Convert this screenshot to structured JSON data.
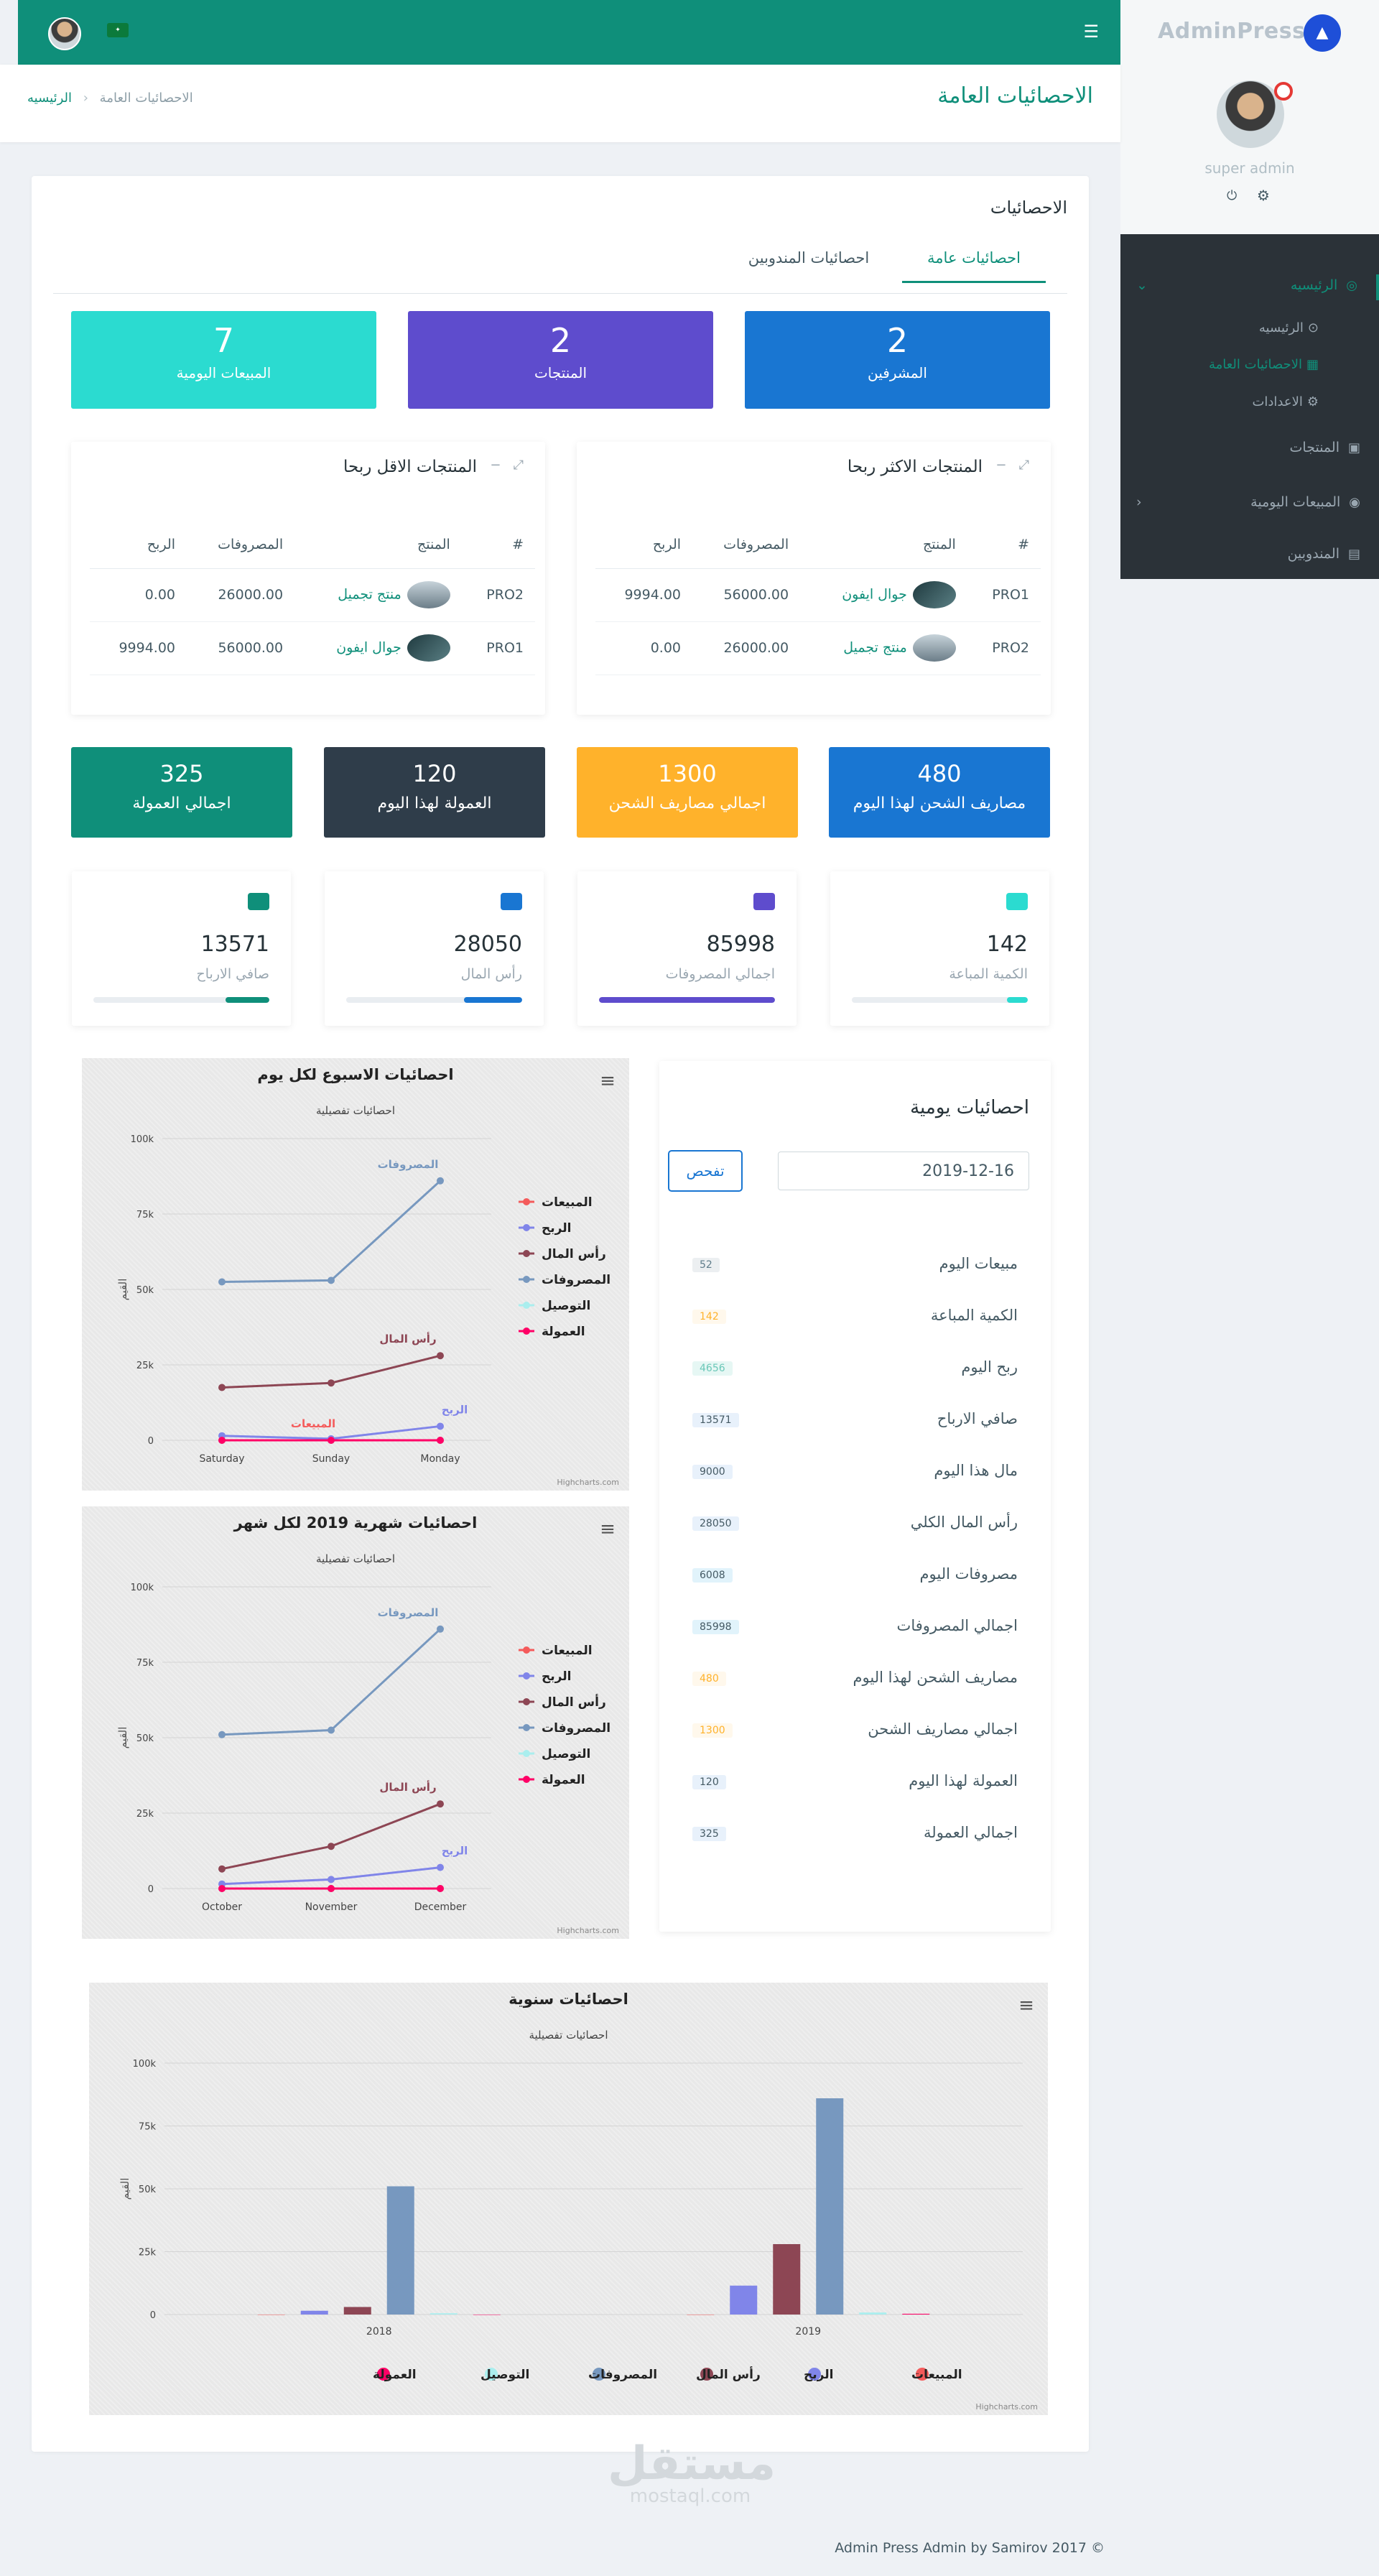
{
  "app": {
    "logo": "AdminPress",
    "profile_name": "super admin"
  },
  "sidebar": {
    "items": [
      {
        "label": "الرئيسيه",
        "active": true
      },
      {
        "label": "الرئيسيه",
        "sub": true
      },
      {
        "label": "الاحصائيات العامة",
        "sub": true,
        "active": true
      },
      {
        "label": "الاعدادات",
        "sub": true
      },
      {
        "label": "المنتجات"
      },
      {
        "label": "المبيعات اليومية"
      },
      {
        "label": "المندوبين"
      }
    ]
  },
  "header": {
    "title": "الاحصائيات العامة",
    "breadcrumb_home": "الرئيسيه",
    "breadcrumb_current": "الاحصائيات العامة"
  },
  "card": {
    "title": "الاحصائيات",
    "tabs": [
      "احصائيات عامة",
      "احصائيات المندوبين"
    ]
  },
  "counters": [
    {
      "value": "2",
      "label": "المشرفين",
      "color": "#1976d2"
    },
    {
      "value": "2",
      "label": "المنتجات",
      "color": "#5e4ccd"
    },
    {
      "value": "7",
      "label": "المبيعات اليومية",
      "color": "#2bdbd0"
    }
  ],
  "top_products": {
    "title": "المنتجات الاكثر ربحا",
    "headers": [
      "#",
      "المنتج",
      "المصروفات",
      "الربح"
    ],
    "rows": [
      {
        "code": "PRO1",
        "name": "جوال ايفون",
        "expenses": "56000.00",
        "profit": "9994.00"
      },
      {
        "code": "PRO2",
        "name": "منتج تجميل",
        "expenses": "26000.00",
        "profit": "0.00"
      }
    ]
  },
  "low_products": {
    "title": "المنتجات الاقل ربحا",
    "headers": [
      "#",
      "المنتج",
      "المصروفات",
      "الربح"
    ],
    "rows": [
      {
        "code": "PRO2",
        "name": "منتج تجميل",
        "expenses": "26000.00",
        "profit": "0.00"
      },
      {
        "code": "PRO1",
        "name": "جوال ايفون",
        "expenses": "56000.00",
        "profit": "9994.00"
      }
    ]
  },
  "summary_boxes": [
    {
      "value": "480",
      "label": "مصاريف الشحن لهذا اليوم",
      "color": "#1976d2"
    },
    {
      "value": "1300",
      "label": "اجمالي مصاريف الشحن",
      "color": "#ffb22b"
    },
    {
      "value": "120",
      "label": "العمولة لهذا اليوم",
      "color": "#2f3d4a"
    },
    {
      "value": "325",
      "label": "اجمالي العمولة",
      "color": "#0f8f7a"
    }
  ],
  "kpis": [
    {
      "value": "142",
      "label": "الكمية المباعة",
      "color": "#2bdbd0",
      "icon": "bag-icon",
      "progress": 0.12
    },
    {
      "value": "85998",
      "label": "اجمالي المصروفات",
      "color": "#5e4ccd",
      "icon": "money-icon",
      "progress": 1.0
    },
    {
      "value": "28050",
      "label": "رأس المال",
      "color": "#1976d2",
      "icon": "dollar-icon",
      "progress": 0.33
    },
    {
      "value": "13571",
      "label": "صافي الارباح",
      "color": "#0f8f7a",
      "icon": "cash-icon",
      "progress": 0.25
    }
  ],
  "daily": {
    "title": "احصائيات يومية",
    "date": "2019-12-16",
    "button": "تفحص",
    "rows": [
      {
        "label": "مبيعات اليوم",
        "value": "52",
        "bg": "#eceff1",
        "fg": "#607d8b"
      },
      {
        "label": "الكمية المباعة",
        "value": "142",
        "bg": "#fff8ec",
        "fg": "#ffb22b"
      },
      {
        "label": "ربح اليوم",
        "value": "4656",
        "bg": "#e6f7f4",
        "fg": "#6bc8b8"
      },
      {
        "label": "صافي الارباح",
        "value": "13571",
        "bg": "#e8f1fb",
        "fg": "#455a64"
      },
      {
        "label": "مال هذا اليوم",
        "value": "9000",
        "bg": "#e8f1fb",
        "fg": "#455a64"
      },
      {
        "label": "رأس المال الكلي",
        "value": "28050",
        "bg": "#e8f1fb",
        "fg": "#455a64"
      },
      {
        "label": "مصروفات اليوم",
        "value": "6008",
        "bg": "#e1f3fb",
        "fg": "#455a64"
      },
      {
        "label": "اجمالي المصروفات",
        "value": "85998",
        "bg": "#e1f3fb",
        "fg": "#455a64"
      },
      {
        "label": "مصاريف الشحن لهذا اليوم",
        "value": "480",
        "bg": "#fff8ec",
        "fg": "#ffb22b"
      },
      {
        "label": "اجمالي مصاريف الشحن",
        "value": "1300",
        "bg": "#fff8ec",
        "fg": "#ffb22b"
      },
      {
        "label": "العمولة لهذا اليوم",
        "value": "120",
        "bg": "#e8f1fb",
        "fg": "#455a64"
      },
      {
        "label": "اجمالي العمولة",
        "value": "325",
        "bg": "#e8f1fb",
        "fg": "#455a64"
      }
    ]
  },
  "chart_data": [
    {
      "type": "line",
      "title": "احصائيات الاسبوع لكل يوم",
      "subtitle": "احصائيات تفصيلية",
      "ylabel": "القيم",
      "categories": [
        "Saturday",
        "Sunday",
        "Monday"
      ],
      "ylim": [
        0,
        100000
      ],
      "yticks": [
        "0",
        "25k",
        "50k",
        "75k",
        "100k"
      ],
      "series": [
        {
          "name": "المبيعات",
          "color": "#f45b5b",
          "values": [
            0,
            0,
            0
          ]
        },
        {
          "name": "الربح",
          "color": "#8085e9",
          "values": [
            1500,
            500,
            4656
          ]
        },
        {
          "name": "رأس المال",
          "color": "#8d4654",
          "values": [
            17500,
            19000,
            28050
          ]
        },
        {
          "name": "المصروفات",
          "color": "#7798bf",
          "values": [
            52500,
            53000,
            85998
          ]
        },
        {
          "name": "التوصيل",
          "color": "#aaeeee",
          "values": [
            0,
            0,
            0
          ]
        },
        {
          "name": "العمولة",
          "color": "#ff0066",
          "values": [
            0,
            0,
            0
          ]
        }
      ],
      "annotations": {
        "المصروفات": "المصروفات",
        "رأس المال": "رأس المال",
        "الربح": "الربح",
        "المبيعات": "المبيعات"
      },
      "credits": "Highcharts.com"
    },
    {
      "type": "line",
      "title": "احصائيات شهرية 2019 لكل شهر",
      "subtitle": "احصائيات تفصيلية",
      "ylabel": "القيم",
      "categories": [
        "October",
        "November",
        "December"
      ],
      "ylim": [
        0,
        100000
      ],
      "yticks": [
        "0",
        "25k",
        "50k",
        "75k",
        "100k"
      ],
      "series": [
        {
          "name": "المبيعات",
          "color": "#f45b5b",
          "values": [
            0,
            0,
            0
          ]
        },
        {
          "name": "الربح",
          "color": "#8085e9",
          "values": [
            1500,
            3000,
            7000
          ]
        },
        {
          "name": "رأس المال",
          "color": "#8d4654",
          "values": [
            6500,
            14000,
            28050
          ]
        },
        {
          "name": "المصروفات",
          "color": "#7798bf",
          "values": [
            51000,
            52500,
            85998
          ]
        },
        {
          "name": "التوصيل",
          "color": "#aaeeee",
          "values": [
            0,
            0,
            0
          ]
        },
        {
          "name": "العمولة",
          "color": "#ff0066",
          "values": [
            0,
            0,
            0
          ]
        }
      ],
      "annotations": {
        "المصروفات": "المصروفات",
        "رأس المال": "رأس المال",
        "الربح": "الربح"
      },
      "credits": "Highcharts.com"
    },
    {
      "type": "bar",
      "title": "احصائيات سنوية",
      "subtitle": "احصائيات تفصيلية",
      "ylabel": "القيم",
      "categories": [
        "2018",
        "2019"
      ],
      "ylim": [
        0,
        100000
      ],
      "yticks": [
        "0",
        "25k",
        "50k",
        "75k",
        "100k"
      ],
      "series": [
        {
          "name": "المبيعات",
          "color": "#f45b5b",
          "values": [
            0,
            0
          ]
        },
        {
          "name": "الربح",
          "color": "#8085e9",
          "values": [
            1500,
            11500
          ]
        },
        {
          "name": "رأس المال",
          "color": "#8d4654",
          "values": [
            3000,
            28000
          ]
        },
        {
          "name": "المصروفات",
          "color": "#7798bf",
          "values": [
            51000,
            86000
          ]
        },
        {
          "name": "التوصيل",
          "color": "#aaeeee",
          "values": [
            500,
            800
          ]
        },
        {
          "name": "العمولة",
          "color": "#ff0066",
          "values": [
            0,
            300
          ]
        }
      ],
      "credits": "Highcharts.com"
    }
  ],
  "footer": {
    "text": "Admin Press Admin by Samirov 2017 ©"
  },
  "watermark": {
    "arabic": "مستقل",
    "latin": "mostaql.com"
  }
}
